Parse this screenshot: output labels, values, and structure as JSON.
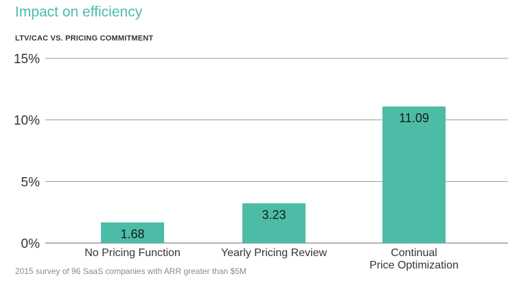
{
  "chart_data": {
    "type": "bar",
    "title": "Impact on efficiency",
    "subtitle": "LTV/CAC VS. PRICING COMMITMENT",
    "categories": [
      "No Pricing Function",
      "Yearly Pricing Review",
      "Continual\nPrice Optimization"
    ],
    "values": [
      1.68,
      3.23,
      11.09
    ],
    "value_labels": [
      "1.68",
      "3.23",
      "11.09"
    ],
    "ylim": [
      0,
      15
    ],
    "yticks": [
      0,
      5,
      10,
      15
    ],
    "ytick_labels": [
      "0%",
      "5%",
      "10%",
      "15%"
    ],
    "grid": true,
    "note": "2015 survey of 96 SaaS companies with ARR greater than $5M",
    "bar_color": "#4dbca7",
    "title_color": "#4dbca7",
    "grid_color": "#9a9a9a"
  }
}
